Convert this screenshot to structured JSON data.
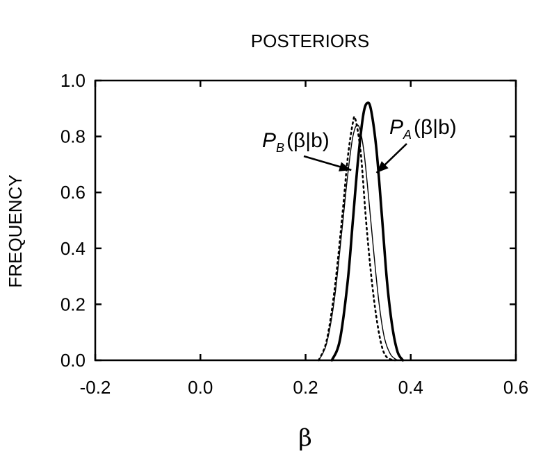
{
  "chart_data": {
    "type": "line",
    "title": "POSTERIORS",
    "xlabel": "β",
    "ylabel": "FREQUENCY",
    "xlim": [
      -0.2,
      0.6
    ],
    "ylim": [
      0.0,
      1.0
    ],
    "x_ticks": [
      "-0.2",
      "0.0",
      "0.2",
      "0.4",
      "0.6"
    ],
    "y_ticks": [
      "0.0",
      "0.2",
      "0.4",
      "0.6",
      "0.8",
      "1.0"
    ],
    "grid": false,
    "series": [
      {
        "name": "P_A(β|b)",
        "style": "thick-solid",
        "x": [
          0.25,
          0.265,
          0.28,
          0.29,
          0.3,
          0.31,
          0.318,
          0.325,
          0.335,
          0.345,
          0.355,
          0.365,
          0.375,
          0.385
        ],
        "values": [
          0.0,
          0.07,
          0.28,
          0.5,
          0.72,
          0.88,
          0.92,
          0.89,
          0.75,
          0.52,
          0.28,
          0.12,
          0.03,
          0.0
        ]
      },
      {
        "name": "P_B(β|b)",
        "style": "thin-solid",
        "x": [
          0.225,
          0.24,
          0.255,
          0.27,
          0.28,
          0.29,
          0.3,
          0.31,
          0.32,
          0.33,
          0.34,
          0.35,
          0.362,
          0.375
        ],
        "values": [
          0.0,
          0.06,
          0.22,
          0.48,
          0.66,
          0.8,
          0.84,
          0.76,
          0.58,
          0.38,
          0.2,
          0.08,
          0.02,
          0.0
        ]
      },
      {
        "name": "",
        "style": "dotted",
        "x": [
          0.225,
          0.24,
          0.255,
          0.27,
          0.28,
          0.29,
          0.295,
          0.305,
          0.315,
          0.325,
          0.335,
          0.345,
          0.355,
          0.37
        ],
        "values": [
          0.0,
          0.07,
          0.25,
          0.52,
          0.72,
          0.85,
          0.86,
          0.74,
          0.5,
          0.3,
          0.15,
          0.05,
          0.01,
          0.0
        ]
      }
    ],
    "annotations": [
      {
        "id": "pb",
        "symbol": "P",
        "subscript": "B",
        "suffix": "(β|b)",
        "arrow_to": [
          0.287,
          0.68
        ]
      },
      {
        "id": "pa",
        "symbol": "P",
        "subscript": "A",
        "suffix": "(β|b)",
        "arrow_to": [
          0.335,
          0.67
        ]
      }
    ]
  }
}
